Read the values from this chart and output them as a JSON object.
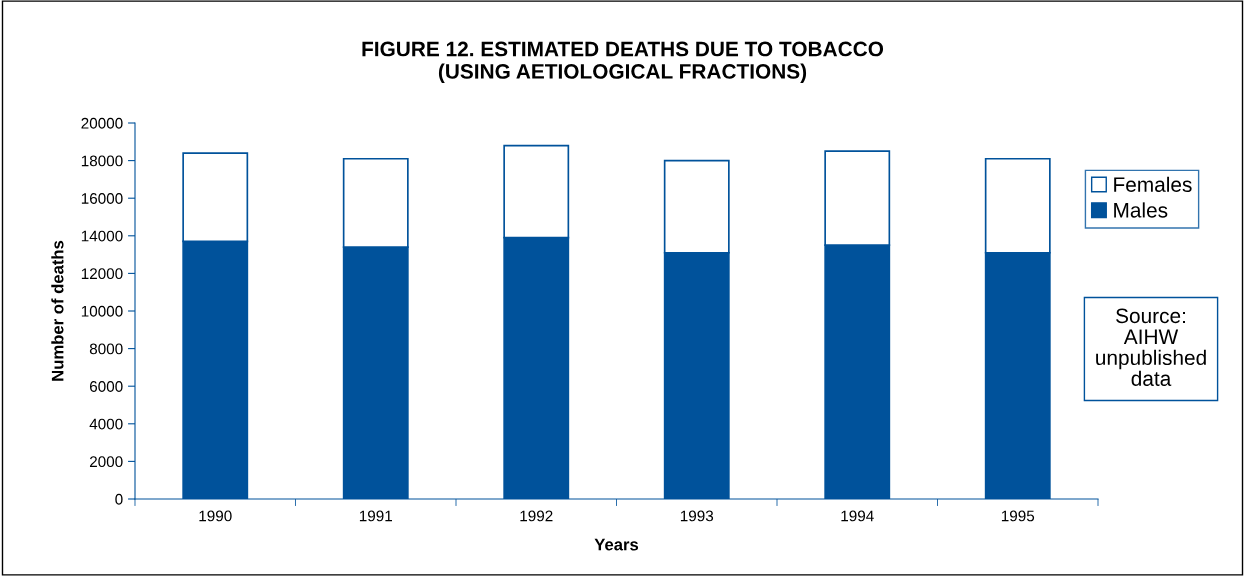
{
  "chart_data": {
    "type": "bar",
    "stacked": true,
    "title": "FIGURE 12. ESTIMATED DEATHS DUE TO TOBACCO\n(USING AETIOLOGICAL FRACTIONS)",
    "xlabel": "Years",
    "ylabel": "Number of deaths",
    "categories": [
      "1990",
      "1991",
      "1992",
      "1993",
      "1994",
      "1995"
    ],
    "series": [
      {
        "name": "Males",
        "color": "#00529b",
        "values": [
          13700,
          13400,
          13900,
          13100,
          13500,
          13100
        ]
      },
      {
        "name": "Females",
        "color": "#ffffff",
        "values": [
          4700,
          4700,
          4900,
          4900,
          5000,
          5000
        ]
      }
    ],
    "ylim": [
      0,
      20000
    ],
    "yticks": [
      0,
      2000,
      4000,
      6000,
      8000,
      10000,
      12000,
      14000,
      16000,
      18000,
      20000
    ],
    "grid": false,
    "legend": "right",
    "annotations": [
      "Source:\nAIHW\nunpublished\ndata"
    ]
  }
}
